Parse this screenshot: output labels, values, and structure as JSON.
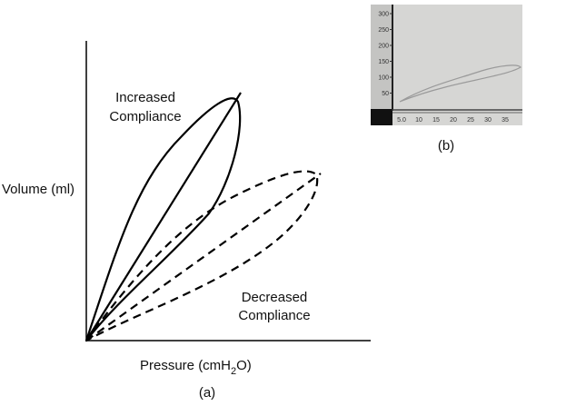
{
  "panel_a": {
    "increased_label": [
      "Increased",
      "Compliance"
    ],
    "decreased_label": [
      "Decreased",
      "Compliance"
    ],
    "y_label": "Volume (ml)",
    "x_label": {
      "main": "Pressure (cmH",
      "sub": "2",
      "end": "O)"
    },
    "caption": "(a)"
  },
  "panel_b": {
    "y_tick_labels": [
      "300",
      "250",
      "200",
      "150",
      "100",
      "50"
    ],
    "x_tick_labels": [
      "5.0",
      "10",
      "15",
      "20",
      "25",
      "30",
      "35"
    ],
    "caption": "(b)"
  }
}
